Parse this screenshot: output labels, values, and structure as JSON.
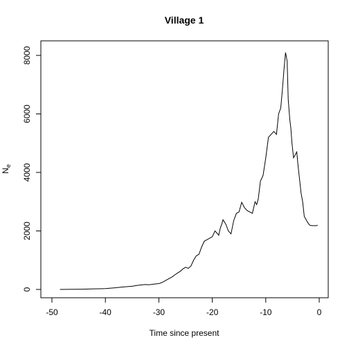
{
  "chart_data": {
    "type": "line",
    "title": "Village 1",
    "xlabel": "Time since present",
    "ylabel": "N",
    "ylabel_subscript": "e",
    "xlim": [
      -50,
      0
    ],
    "ylim": [
      0,
      8000
    ],
    "x_ticks": [
      -50,
      -40,
      -30,
      -20,
      -10,
      0
    ],
    "y_ticks": [
      0,
      2000,
      4000,
      6000,
      8000
    ],
    "grid": false,
    "series": [
      {
        "x": [
          -48.5,
          -46,
          -44,
          -43,
          -42,
          -41,
          -40,
          -39,
          -38,
          -37,
          -36,
          -35,
          -34,
          -33,
          -32.5,
          -32,
          -31.5,
          -31,
          -30,
          -29.5,
          -29,
          -28.5,
          -28,
          -27.5,
          -27,
          -26.5,
          -26,
          -25.5,
          -25,
          -24.5,
          -24,
          -23.5,
          -23,
          -22.5,
          -22,
          -21.5,
          -21,
          -20.5,
          -20,
          -19.5,
          -19,
          -18.8,
          -18.5,
          -18.2,
          -18,
          -17.7,
          -17.4,
          -17,
          -16.5,
          -16,
          -15.5,
          -15,
          -14.5,
          -14,
          -13.5,
          -13,
          -12.5,
          -12,
          -11.7,
          -11.4,
          -11,
          -10.5,
          -10,
          -9.5,
          -9,
          -8.5,
          -8,
          -7.6,
          -7.2,
          -6.9,
          -6.6,
          -6.3,
          -6,
          -5.8,
          -5.5,
          -5.3,
          -5.1,
          -4.8,
          -4.5,
          -4.2,
          -4,
          -3.7,
          -3.4,
          -3.1,
          -2.8,
          -2.5,
          -2.2,
          -1.8,
          -1.4,
          -1,
          -0.5,
          -0.3
        ],
        "y": [
          0,
          5,
          10,
          15,
          20,
          25,
          30,
          45,
          60,
          80,
          95,
          110,
          140,
          160,
          170,
          160,
          170,
          180,
          200,
          230,
          280,
          330,
          380,
          430,
          500,
          560,
          620,
          700,
          760,
          720,
          800,
          1000,
          1150,
          1200,
          1450,
          1650,
          1700,
          1750,
          1800,
          2000,
          1900,
          1850,
          2100,
          2250,
          2380,
          2300,
          2200,
          2000,
          1900,
          2350,
          2600,
          2650,
          2980,
          2800,
          2700,
          2650,
          2600,
          3000,
          2900,
          3100,
          3700,
          3900,
          4500,
          5200,
          5300,
          5400,
          5300,
          6000,
          6200,
          6800,
          7500,
          8100,
          7800,
          6500,
          5800,
          5500,
          5000,
          4500,
          4600,
          4700,
          4300,
          3800,
          3300,
          3000,
          2500,
          2400,
          2300,
          2200,
          2180,
          2180,
          2180,
          2200
        ],
        "color": "#000000"
      }
    ]
  }
}
